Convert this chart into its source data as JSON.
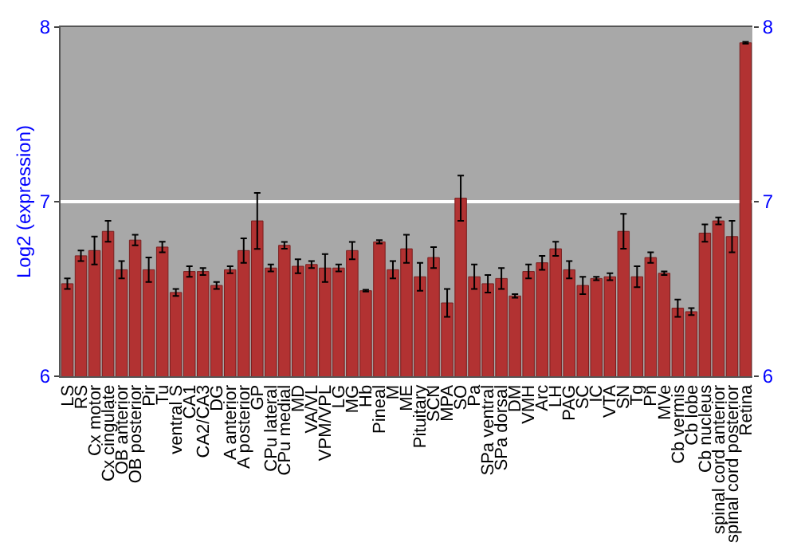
{
  "chart_data": {
    "type": "bar",
    "ylabel": "Log2 (expression)",
    "categories": [
      "LS",
      "RS",
      "Cx motor",
      "Cx cingulate",
      "OB anterior",
      "OB posterior",
      "Pir",
      "Tu",
      "ventral S",
      "CA1",
      "CA2/CA3",
      "DG",
      "A anterior",
      "A posterior",
      "GP",
      "CPu lateral",
      "CPu medial",
      "MD",
      "VA/VL",
      "VPM/VPL",
      "LG",
      "MG",
      "Hb",
      "Pineal",
      "M",
      "ME",
      "Pituitary",
      "SCN",
      "MPA",
      "SO",
      "Pa",
      "SPa ventral",
      "SPa dorsal",
      "DM",
      "VMH",
      "Arc",
      "LH",
      "PAG",
      "SC",
      "IC",
      "VTA",
      "SN",
      "Tg",
      "Pn",
      "MVe",
      "Cb vermis",
      "Cb lobe",
      "Cb nucleus",
      "spinal cord anterior",
      "spinal cord posterior",
      "Retina"
    ],
    "values": [
      6.53,
      6.69,
      6.72,
      6.83,
      6.61,
      6.78,
      6.61,
      6.74,
      6.48,
      6.6,
      6.6,
      6.52,
      6.61,
      6.72,
      6.89,
      6.62,
      6.75,
      6.63,
      6.64,
      6.62,
      6.62,
      6.72,
      6.49,
      6.77,
      6.61,
      6.73,
      6.57,
      6.68,
      6.42,
      7.02,
      6.57,
      6.53,
      6.56,
      6.46,
      6.6,
      6.65,
      6.73,
      6.61,
      6.52,
      6.56,
      6.57,
      6.83,
      6.57,
      6.68,
      6.59,
      6.39,
      6.37,
      6.82,
      6.89,
      6.8,
      7.91
    ],
    "errors": [
      0.03,
      0.03,
      0.08,
      0.06,
      0.05,
      0.03,
      0.07,
      0.03,
      0.02,
      0.03,
      0.02,
      0.02,
      0.02,
      0.07,
      0.16,
      0.02,
      0.02,
      0.04,
      0.02,
      0.08,
      0.02,
      0.05,
      0.005,
      0.01,
      0.05,
      0.08,
      0.08,
      0.06,
      0.08,
      0.13,
      0.07,
      0.05,
      0.06,
      0.01,
      0.04,
      0.04,
      0.04,
      0.05,
      0.05,
      0.01,
      0.02,
      0.1,
      0.06,
      0.03,
      0.01,
      0.05,
      0.02,
      0.05,
      0.02,
      0.09,
      0.005
    ],
    "color": "#b23232",
    "ylim": [
      6,
      8
    ],
    "yticks": [
      6,
      7,
      8
    ],
    "y2lim": [
      6,
      8
    ],
    "y2ticks": [
      6,
      7,
      8
    ],
    "grid": "y"
  }
}
